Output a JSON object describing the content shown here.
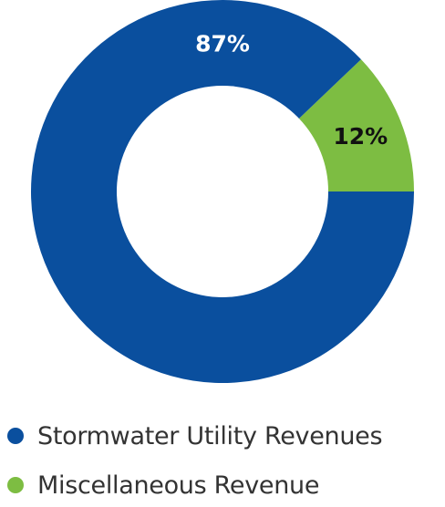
{
  "chart_data": {
    "type": "pie",
    "donut": true,
    "slices": [
      {
        "label": "Stormwater Utility Revenues",
        "value": 87,
        "display": "87%",
        "color": "#0a4f9e",
        "label_color": "#ffffff"
      },
      {
        "label": "Miscellaneous Revenue",
        "value": 12,
        "display": "12%",
        "color": "#7dbd42",
        "label_color": "#111111"
      }
    ],
    "legend_position": "bottom"
  }
}
